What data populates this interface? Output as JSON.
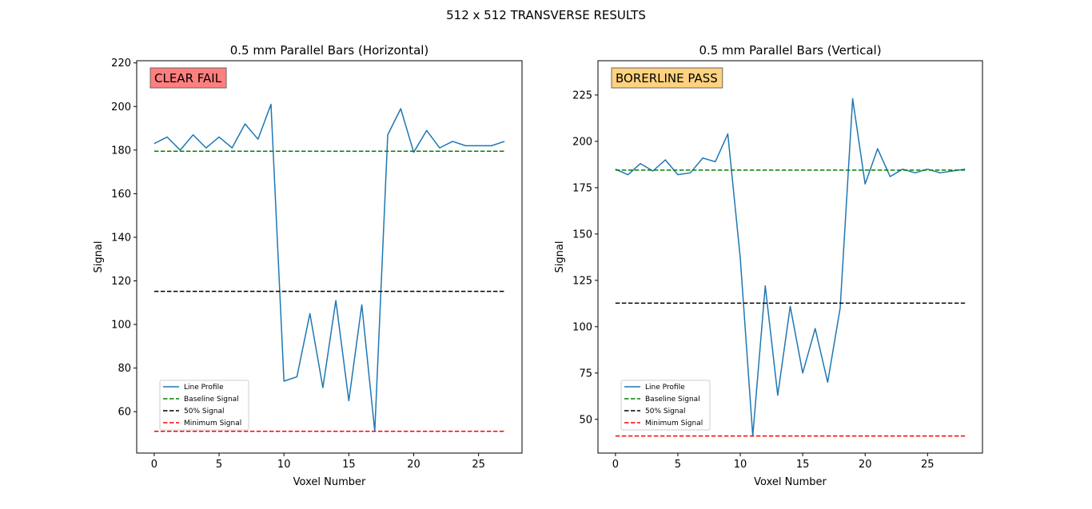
{
  "figure": {
    "suptitle": "512 x 512 TRANSVERSE RESULTS"
  },
  "chart_data": [
    {
      "type": "line",
      "title": "0.5 mm Parallel Bars (Horizontal)",
      "xlabel": "Voxel Number",
      "ylabel": "Signal",
      "xlim": [
        -1.35,
        28.35
      ],
      "ylim": [
        41,
        221
      ],
      "xticks": [
        0,
        5,
        10,
        15,
        20,
        25
      ],
      "yticks": [
        60,
        80,
        100,
        120,
        140,
        160,
        180,
        200,
        220
      ],
      "badge": {
        "text": "CLEAR FAIL",
        "color": "#ff7f7f",
        "border": "#666666"
      },
      "legend_position": "lower-left",
      "series": [
        {
          "name": "Line Profile",
          "color": "#1f77b4",
          "style": "solid",
          "x": [
            0,
            1,
            2,
            3,
            4,
            5,
            6,
            7,
            8,
            9,
            10,
            11,
            12,
            13,
            14,
            15,
            16,
            17,
            18,
            19,
            20,
            21,
            22,
            23,
            24,
            25,
            26,
            27
          ],
          "y": [
            183,
            186,
            180,
            187,
            181,
            186,
            181,
            192,
            185,
            201,
            74,
            76,
            105,
            71,
            111,
            65,
            109,
            51,
            187,
            199,
            179,
            189,
            181,
            184,
            182,
            182,
            182,
            184
          ]
        },
        {
          "name": "Baseline Signal",
          "color": "#008000",
          "style": "dashed",
          "x": [
            0,
            27
          ],
          "y": [
            179.5,
            179.5
          ]
        },
        {
          "name": "50% Signal",
          "color": "#000000",
          "style": "dashed",
          "x": [
            0,
            27
          ],
          "y": [
            115.2,
            115.2
          ]
        },
        {
          "name": "Minimum Signal",
          "color": "#ff0000",
          "style": "dashed",
          "x": [
            0,
            27
          ],
          "y": [
            51,
            51
          ]
        }
      ]
    },
    {
      "type": "line",
      "title": "0.5 mm Parallel Bars (Vertical)",
      "xlabel": "Voxel Number",
      "ylabel": "Signal",
      "xlim": [
        -1.4,
        29.4
      ],
      "ylim": [
        31.8,
        243.5
      ],
      "xticks": [
        0,
        5,
        10,
        15,
        20,
        25
      ],
      "yticks": [
        50,
        75,
        100,
        125,
        150,
        175,
        200,
        225
      ],
      "badge": {
        "text": "BORERLINE PASS",
        "color": "#ffd27f",
        "border": "#666666"
      },
      "legend_position": "lower-left",
      "series": [
        {
          "name": "Line Profile",
          "color": "#1f77b4",
          "style": "solid",
          "x": [
            0,
            1,
            2,
            3,
            4,
            5,
            6,
            7,
            8,
            9,
            10,
            11,
            12,
            13,
            14,
            15,
            16,
            17,
            18,
            19,
            20,
            21,
            22,
            23,
            24,
            25,
            26,
            27,
            28
          ],
          "y": [
            185,
            182,
            188,
            184,
            190,
            182,
            183,
            191,
            189,
            204,
            137,
            41,
            122,
            63,
            111,
            75,
            99,
            70,
            110,
            223,
            177,
            196,
            181,
            185,
            183,
            185,
            183,
            184,
            185
          ]
        },
        {
          "name": "Baseline Signal",
          "color": "#008000",
          "style": "dashed",
          "x": [
            0,
            28
          ],
          "y": [
            184.5,
            184.5
          ]
        },
        {
          "name": "50% Signal",
          "color": "#000000",
          "style": "dashed",
          "x": [
            0,
            28
          ],
          "y": [
            112.7,
            112.7
          ]
        },
        {
          "name": "Minimum Signal",
          "color": "#ff0000",
          "style": "dashed",
          "x": [
            0,
            28
          ],
          "y": [
            41,
            41
          ]
        }
      ]
    }
  ]
}
